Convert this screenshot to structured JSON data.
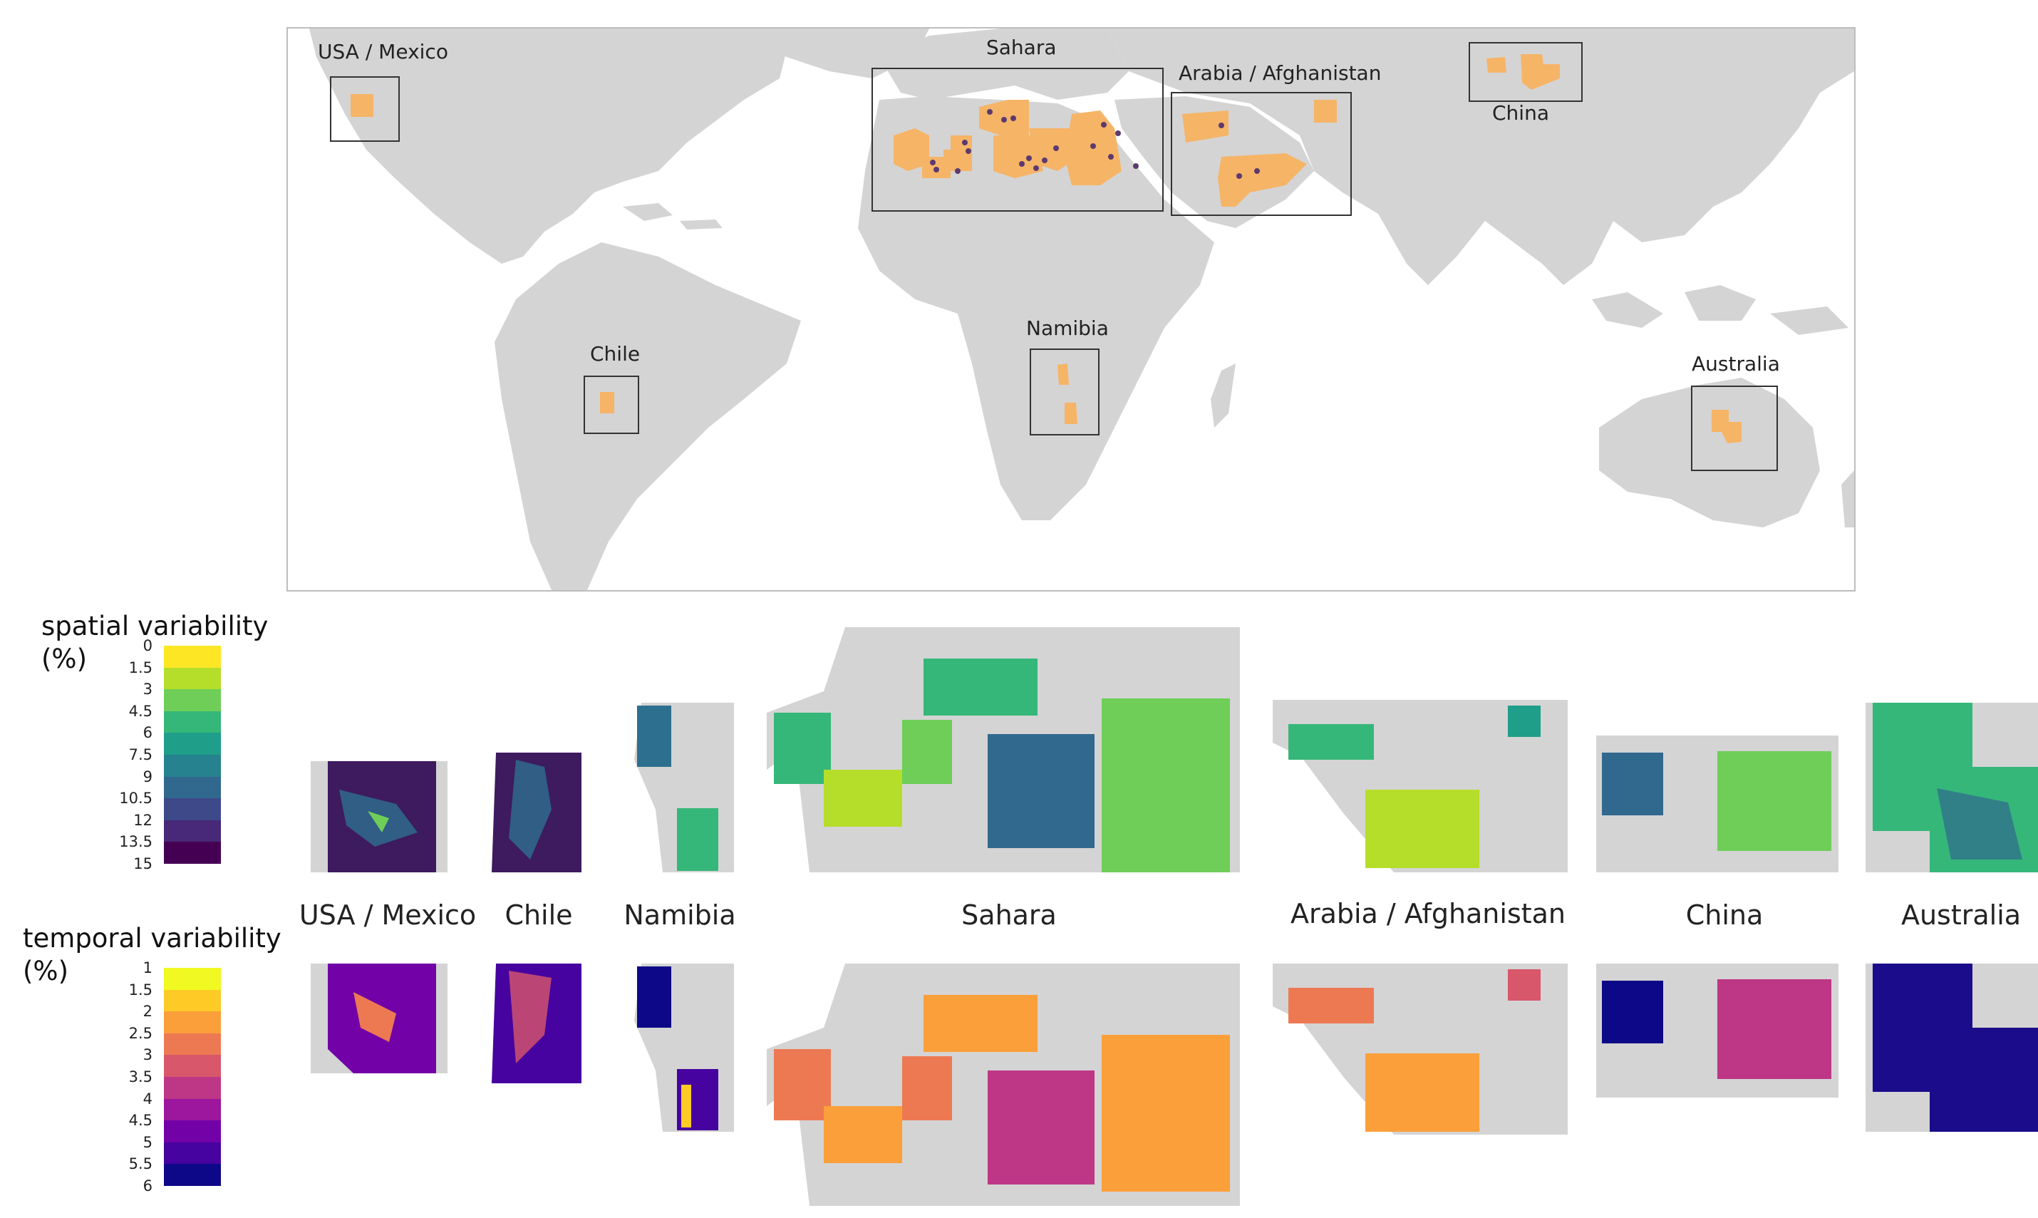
{
  "map": {
    "regions": [
      {
        "id": "usa-mexico",
        "label": "USA / Mexico"
      },
      {
        "id": "sahara",
        "label": "Sahara"
      },
      {
        "id": "arabia-afghanistan",
        "label": "Arabia / Afghanistan"
      },
      {
        "id": "china",
        "label": "China"
      },
      {
        "id": "chile",
        "label": "Chile"
      },
      {
        "id": "namibia",
        "label": "Namibia"
      },
      {
        "id": "australia",
        "label": "Australia"
      }
    ],
    "colors": {
      "land": "#d4d4d4",
      "ocean": "#ffffff",
      "study_area": "#f6b467",
      "site_point": "#5b3a6e",
      "box": "#333333"
    }
  },
  "strip_labels": [
    "USA / Mexico",
    "Chile",
    "Namibia",
    "Sahara",
    "Arabia / Afghanistan",
    "China",
    "Australia"
  ],
  "legends": {
    "spatial": {
      "title_line1": "spatial variability",
      "title_line2": "(%)",
      "ticks": [
        "0",
        "1.5",
        "3",
        "4.5",
        "6",
        "7.5",
        "9",
        "10.5",
        "12",
        "13.5",
        "15"
      ],
      "colors": [
        "#fde725",
        "#b5de2b",
        "#6ece58",
        "#35b779",
        "#1f9e89",
        "#26828e",
        "#31688e",
        "#3e4989",
        "#482878",
        "#440154"
      ]
    },
    "temporal": {
      "title_line1": "temporal variability",
      "title_line2": "(%)",
      "ticks": [
        "1",
        "1.5",
        "2",
        "2.5",
        "3",
        "3.5",
        "4",
        "4.5",
        "5",
        "5.5",
        "6"
      ],
      "colors": [
        "#f0f921",
        "#fdca26",
        "#fb9f3a",
        "#ed7953",
        "#d8576b",
        "#bd3786",
        "#9c179e",
        "#7201a8",
        "#46039f",
        "#0d0887"
      ]
    }
  }
}
